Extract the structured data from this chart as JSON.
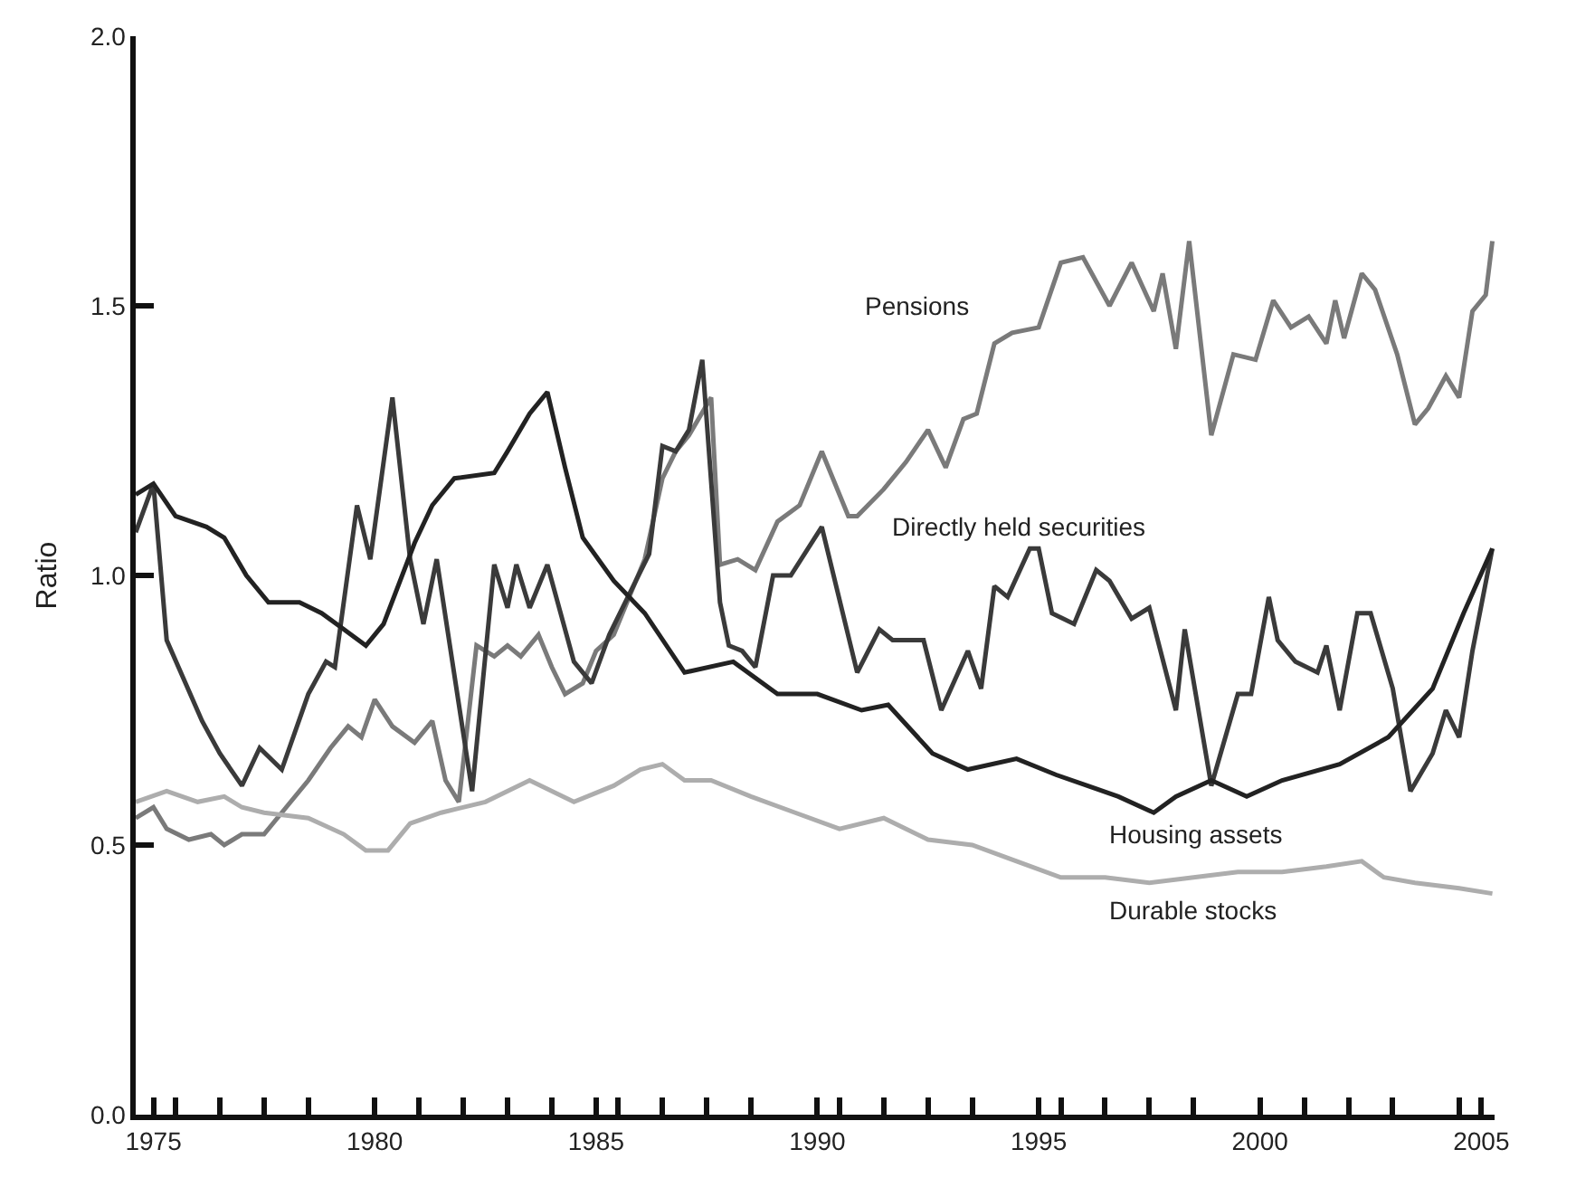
{
  "chart_data": {
    "type": "line",
    "ylabel": "Ratio",
    "xlim": [
      1974.6,
      2005.3
    ],
    "ylim": [
      0,
      2
    ],
    "xticks": [
      1975,
      {
        "value": 1975.5,
        "label": null
      },
      {
        "value": 1976.5,
        "label": null
      },
      {
        "value": 1977.5,
        "label": null
      },
      {
        "value": 1978.5,
        "label": null
      },
      1980,
      {
        "value": 1981,
        "label": null
      },
      {
        "value": 1982,
        "label": null
      },
      {
        "value": 1983,
        "label": null
      },
      {
        "value": 1984,
        "label": null
      },
      1985,
      {
        "value": 1985.5,
        "label": null
      },
      {
        "value": 1986.5,
        "label": null
      },
      {
        "value": 1987.5,
        "label": null
      },
      {
        "value": 1988.5,
        "label": null
      },
      1990,
      {
        "value": 1990.5,
        "label": null
      },
      {
        "value": 1991.5,
        "label": null
      },
      {
        "value": 1992.5,
        "label": null
      },
      {
        "value": 1993.5,
        "label": null
      },
      1995,
      {
        "value": 1995.5,
        "label": null
      },
      {
        "value": 1996.5,
        "label": null
      },
      {
        "value": 1997.5,
        "label": null
      },
      {
        "value": 1998.5,
        "label": null
      },
      2000,
      {
        "value": 2001,
        "label": null
      },
      {
        "value": 2002,
        "label": null
      },
      {
        "value": 2003,
        "label": null
      },
      {
        "value": 2004.5,
        "label": null
      },
      2005
    ],
    "yticks": [
      {
        "value": 0,
        "label": "0.0"
      },
      {
        "value": 0.5,
        "label": "0.5"
      },
      {
        "value": 1,
        "label": "1.0"
      },
      {
        "value": 1.5,
        "label": "1.5"
      },
      {
        "value": 2,
        "label": "2.0"
      }
    ],
    "legend": false,
    "marker": "none",
    "line_style": "solid",
    "series": [
      {
        "name": "Pensions",
        "color": "#7a7a7a",
        "x": [
          1974.6,
          1975.0,
          1975.3,
          1975.8,
          1976.3,
          1976.6,
          1977.0,
          1977.5,
          1978.0,
          1978.5,
          1979.0,
          1979.4,
          1979.7,
          1980.0,
          1980.4,
          1980.9,
          1981.3,
          1981.6,
          1981.9,
          1982.3,
          1982.7,
          1983.0,
          1983.3,
          1983.7,
          1984.0,
          1984.3,
          1984.7,
          1985.0,
          1985.4,
          1986.1,
          1986.5,
          1986.8,
          1987.1,
          1987.6,
          1987.8,
          1988.2,
          1988.6,
          1989.1,
          1989.6,
          1990.1,
          1990.7,
          1990.9,
          1991.5,
          1992.0,
          1992.5,
          1992.9,
          1993.3,
          1993.6,
          1994.0,
          1994.4,
          1995.0,
          1995.5,
          1996.0,
          1996.6,
          1997.1,
          1997.6,
          1997.8,
          1998.1,
          1998.4,
          1998.9,
          1999.4,
          1999.9,
          2000.3,
          2000.7,
          2001.1,
          2001.5,
          2001.7,
          2001.9,
          2002.3,
          2002.6,
          2003.1,
          2003.5,
          2003.8,
          2004.2,
          2004.5,
          2004.8,
          2005.1,
          2005.25
        ],
        "values": [
          0.55,
          0.57,
          0.53,
          0.51,
          0.52,
          0.5,
          0.52,
          0.52,
          0.57,
          0.62,
          0.68,
          0.72,
          0.7,
          0.77,
          0.72,
          0.69,
          0.73,
          0.62,
          0.58,
          0.87,
          0.85,
          0.87,
          0.85,
          0.89,
          0.83,
          0.78,
          0.8,
          0.86,
          0.89,
          1.03,
          1.18,
          1.23,
          1.26,
          1.33,
          1.02,
          1.03,
          1.01,
          1.1,
          1.13,
          1.23,
          1.11,
          1.11,
          1.16,
          1.21,
          1.27,
          1.2,
          1.29,
          1.3,
          1.43,
          1.45,
          1.46,
          1.58,
          1.59,
          1.5,
          1.58,
          1.49,
          1.56,
          1.42,
          1.62,
          1.26,
          1.41,
          1.4,
          1.51,
          1.46,
          1.48,
          1.43,
          1.51,
          1.44,
          1.56,
          1.53,
          1.41,
          1.28,
          1.31,
          1.37,
          1.33,
          1.49,
          1.52,
          1.62
        ]
      },
      {
        "name": "Directly held securities",
        "color": "#3a3a3a",
        "x": [
          1974.6,
          1975.0,
          1975.3,
          1976.1,
          1976.5,
          1977.0,
          1977.4,
          1977.9,
          1978.5,
          1978.9,
          1979.1,
          1979.6,
          1979.9,
          1980.4,
          1980.8,
          1981.1,
          1981.4,
          1982.2,
          1982.7,
          1983.0,
          1983.2,
          1983.5,
          1983.9,
          1984.5,
          1984.9,
          1985.3,
          1985.9,
          1986.2,
          1986.5,
          1986.8,
          1987.1,
          1987.4,
          1987.8,
          1988.0,
          1988.3,
          1988.6,
          1989.0,
          1989.4,
          1990.1,
          1990.9,
          1991.4,
          1991.7,
          1992.4,
          1992.8,
          1993.4,
          1993.7,
          1994.0,
          1994.3,
          1994.8,
          1995.0,
          1995.3,
          1995.8,
          1996.3,
          1996.6,
          1997.1,
          1997.5,
          1998.1,
          1998.3,
          1998.9,
          1999.5,
          1999.8,
          2000.2,
          2000.4,
          2000.8,
          2001.3,
          2001.5,
          2001.8,
          2002.2,
          2002.5,
          2003.0,
          2003.4,
          2003.9,
          2004.2,
          2004.5,
          2004.8,
          2005.25
        ],
        "values": [
          1.08,
          1.17,
          0.88,
          0.73,
          0.67,
          0.61,
          0.68,
          0.64,
          0.78,
          0.84,
          0.83,
          1.13,
          1.03,
          1.33,
          1.03,
          0.91,
          1.03,
          0.6,
          1.02,
          0.94,
          1.02,
          0.94,
          1.02,
          0.84,
          0.8,
          0.89,
          0.99,
          1.04,
          1.24,
          1.23,
          1.27,
          1.4,
          0.95,
          0.87,
          0.86,
          0.83,
          1.0,
          1.0,
          1.09,
          0.82,
          0.9,
          0.88,
          0.88,
          0.75,
          0.86,
          0.79,
          0.98,
          0.96,
          1.05,
          1.05,
          0.93,
          0.91,
          1.01,
          0.99,
          0.92,
          0.94,
          0.75,
          0.9,
          0.61,
          0.78,
          0.78,
          0.96,
          0.88,
          0.84,
          0.82,
          0.87,
          0.75,
          0.93,
          0.93,
          0.79,
          0.6,
          0.67,
          0.75,
          0.7,
          0.86,
          1.05
        ]
      },
      {
        "name": "Housing assets",
        "color": "#222222",
        "x": [
          1974.6,
          1975.0,
          1975.5,
          1976.2,
          1976.6,
          1977.1,
          1977.6,
          1978.3,
          1978.8,
          1979.3,
          1979.8,
          1980.2,
          1980.9,
          1981.3,
          1981.8,
          1982.7,
          1983.0,
          1983.5,
          1983.9,
          1984.3,
          1984.7,
          1985.4,
          1986.1,
          1987.0,
          1988.1,
          1989.1,
          1990.0,
          1991.0,
          1991.6,
          1992.6,
          1993.4,
          1994.5,
          1995.4,
          1996.1,
          1996.8,
          1997.6,
          1998.1,
          1998.9,
          1999.7,
          2000.5,
          2001.8,
          2002.9,
          2003.9,
          2004.6,
          2005.25
        ],
        "values": [
          1.15,
          1.17,
          1.11,
          1.09,
          1.07,
          1.0,
          0.95,
          0.95,
          0.93,
          0.9,
          0.87,
          0.91,
          1.06,
          1.13,
          1.18,
          1.19,
          1.23,
          1.3,
          1.34,
          1.2,
          1.07,
          0.99,
          0.93,
          0.82,
          0.84,
          0.78,
          0.78,
          0.75,
          0.76,
          0.67,
          0.64,
          0.66,
          0.63,
          0.61,
          0.59,
          0.56,
          0.59,
          0.62,
          0.59,
          0.62,
          0.65,
          0.7,
          0.79,
          0.93,
          1.05
        ]
      },
      {
        "name": "Durable stocks",
        "color": "#adadad",
        "x": [
          1974.6,
          1975.3,
          1976.0,
          1976.6,
          1977.0,
          1977.5,
          1978.5,
          1979.3,
          1979.8,
          1980.3,
          1980.8,
          1981.5,
          1982.5,
          1983.5,
          1984.5,
          1985.4,
          1986.0,
          1986.5,
          1987.0,
          1987.6,
          1988.5,
          1989.5,
          1990.5,
          1991.5,
          1992.5,
          1993.5,
          1994.5,
          1995.5,
          1996.5,
          1997.5,
          1998.5,
          1999.5,
          2000.5,
          2001.5,
          2002.3,
          2002.8,
          2003.5,
          2004.5,
          2005.25
        ],
        "values": [
          0.58,
          0.6,
          0.58,
          0.59,
          0.57,
          0.56,
          0.55,
          0.52,
          0.49,
          0.49,
          0.54,
          0.56,
          0.58,
          0.62,
          0.58,
          0.61,
          0.64,
          0.65,
          0.62,
          0.62,
          0.59,
          0.56,
          0.53,
          0.55,
          0.51,
          0.5,
          0.47,
          0.44,
          0.44,
          0.43,
          0.44,
          0.45,
          0.45,
          0.46,
          0.47,
          0.44,
          0.43,
          0.42,
          0.41
        ]
      }
    ]
  }
}
